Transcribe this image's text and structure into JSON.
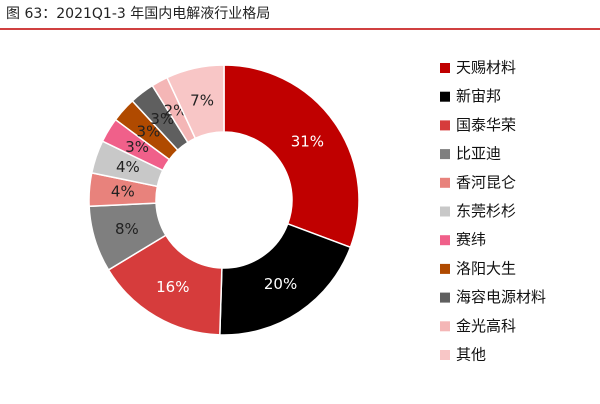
{
  "chart_data": {
    "type": "donut",
    "title": "图 63：2021Q1-3 年国内电解液行业格局",
    "categories": [
      "天赐材料",
      "新宙邦",
      "国泰华荣",
      "比亚迪",
      "香河昆仑",
      "东莞杉杉",
      "赛纬",
      "洛阳大生",
      "海容电源材料",
      "金光高科",
      "其他"
    ],
    "values": [
      31,
      20,
      16,
      8,
      4,
      4,
      3,
      3,
      3,
      2,
      7
    ],
    "value_labels": [
      "31%",
      "20%",
      "16%",
      "8%",
      "4%",
      "4%",
      "3%",
      "3%",
      "3%",
      "2%",
      "7%"
    ],
    "colors": [
      "#c00000",
      "#000000",
      "#d63c3c",
      "#7f7f7f",
      "#e8827c",
      "#c8c8c8",
      "#f0608a",
      "#b04a00",
      "#5f5f5f",
      "#f4b6b6",
      "#f8c6c6"
    ],
    "legend": "right"
  }
}
